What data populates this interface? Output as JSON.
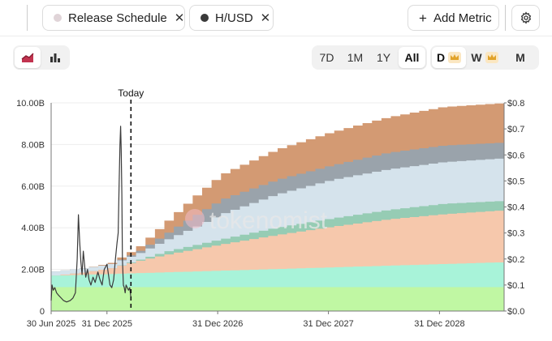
{
  "metrics": {
    "pills": [
      {
        "label": "Release Schedule",
        "dot_color": "#e0d4d8"
      },
      {
        "label": "H/USD",
        "dot_color": "#3a3a3a"
      }
    ],
    "close_glyph": "✕",
    "add_label": "Add Metric",
    "add_icon": "plus-icon",
    "settings_icon": "gear-icon"
  },
  "controls": {
    "chart_types": [
      {
        "icon": "area-chart-icon",
        "active": true
      },
      {
        "icon": "bar-chart-icon",
        "active": false
      }
    ],
    "ranges": [
      {
        "label": "7D",
        "active": false
      },
      {
        "label": "1M",
        "active": false
      },
      {
        "label": "1Y",
        "active": false
      },
      {
        "label": "All",
        "active": true
      }
    ],
    "granularity": [
      {
        "label": "D",
        "premium": true,
        "active": true
      },
      {
        "label": "W",
        "premium": true,
        "active": false
      },
      {
        "label": "M",
        "premium": false,
        "active": false
      }
    ]
  },
  "watermark": "tokenomist",
  "chart_data": {
    "type": "area",
    "title": "",
    "xlabel": "",
    "ylabel": "",
    "today_label": "Today",
    "today_date": "2026-03-20",
    "x_range": [
      "2025-06-30",
      "2029-08-01"
    ],
    "x_ticks": [
      {
        "date": "2025-06-30",
        "label": "30 Jun 2025"
      },
      {
        "date": "2025-12-31",
        "label": "31 Dec 2025"
      },
      {
        "date": "2026-12-31",
        "label": "31 Dec 2026"
      },
      {
        "date": "2027-12-31",
        "label": "31 Dec 2027"
      },
      {
        "date": "2028-12-31",
        "label": "31 Dec 2028"
      }
    ],
    "y_left": {
      "range": [
        0,
        10000000000
      ],
      "ticks": [
        {
          "value": 0,
          "label": "0"
        },
        {
          "value": 2000000000,
          "label": "2.00B"
        },
        {
          "value": 4000000000,
          "label": "4.00B"
        },
        {
          "value": 6000000000,
          "label": "6.00B"
        },
        {
          "value": 8000000000,
          "label": "8.00B"
        },
        {
          "value": 10000000000,
          "label": "10.00B"
        }
      ]
    },
    "y_right": {
      "range": [
        0,
        0.8
      ],
      "ticks": [
        {
          "value": 0,
          "label": "$0.0"
        },
        {
          "value": 0.1,
          "label": "$0.1"
        },
        {
          "value": 0.2,
          "label": "$0.2"
        },
        {
          "value": 0.3,
          "label": "$0.3"
        },
        {
          "value": 0.4,
          "label": "$0.4"
        },
        {
          "value": 0.5,
          "label": "$0.5"
        },
        {
          "value": 0.6,
          "label": "$0.6"
        },
        {
          "value": 0.7,
          "label": "$0.7"
        },
        {
          "value": 0.8,
          "label": "$0.8"
        }
      ]
    },
    "grid": "horizontal",
    "stack_series": [
      {
        "color": "#c0f7a3",
        "points": [
          [
            "2025-06-30",
            1150000000
          ],
          [
            "2029-08-01",
            1150000000
          ]
        ]
      },
      {
        "color": "#a8f3d9",
        "points": [
          [
            "2025-06-30",
            1700000000
          ],
          [
            "2029-08-01",
            2350000000
          ]
        ]
      },
      {
        "color": "#f6c8ac",
        "points": [
          [
            "2025-06-30",
            1700000000
          ],
          [
            "2025-10-01",
            1850000000
          ],
          [
            "2026-01-01",
            2050000000
          ],
          [
            "2026-04-01",
            2400000000
          ],
          [
            "2026-07-01",
            2700000000
          ],
          [
            "2026-10-01",
            2950000000
          ],
          [
            "2027-01-01",
            3200000000
          ],
          [
            "2027-07-01",
            3650000000
          ],
          [
            "2028-01-01",
            4050000000
          ],
          [
            "2028-07-01",
            4400000000
          ],
          [
            "2029-01-01",
            4650000000
          ],
          [
            "2029-08-01",
            4850000000
          ]
        ]
      },
      {
        "color": "#96ccb4",
        "points": [
          [
            "2025-06-30",
            1700000000
          ],
          [
            "2025-10-01",
            1850000000
          ],
          [
            "2026-01-01",
            2050000000
          ],
          [
            "2026-04-01",
            2450000000
          ],
          [
            "2026-07-01",
            2850000000
          ],
          [
            "2026-10-01",
            3150000000
          ],
          [
            "2027-01-01",
            3450000000
          ],
          [
            "2027-07-01",
            4000000000
          ],
          [
            "2028-01-01",
            4450000000
          ],
          [
            "2028-07-01",
            4850000000
          ],
          [
            "2029-01-01",
            5150000000
          ],
          [
            "2029-08-01",
            5300000000
          ]
        ]
      },
      {
        "color": "#d5e3ec",
        "points": [
          [
            "2025-06-30",
            1900000000
          ],
          [
            "2025-10-01",
            2050000000
          ],
          [
            "2026-01-01",
            2250000000
          ],
          [
            "2026-04-01",
            2750000000
          ],
          [
            "2026-07-01",
            3400000000
          ],
          [
            "2026-10-01",
            4000000000
          ],
          [
            "2027-01-01",
            4650000000
          ],
          [
            "2027-07-01",
            5600000000
          ],
          [
            "2028-01-01",
            6300000000
          ],
          [
            "2028-07-01",
            6800000000
          ],
          [
            "2029-01-01",
            7150000000
          ],
          [
            "2029-08-01",
            7350000000
          ]
        ]
      },
      {
        "color": "#9aa3ab",
        "points": [
          [
            "2025-06-30",
            1900000000
          ],
          [
            "2025-10-01",
            2050000000
          ],
          [
            "2026-01-01",
            2250000000
          ],
          [
            "2026-04-01",
            2850000000
          ],
          [
            "2026-07-01",
            3700000000
          ],
          [
            "2026-10-01",
            4550000000
          ],
          [
            "2027-01-01",
            5350000000
          ],
          [
            "2027-07-01",
            6300000000
          ],
          [
            "2028-01-01",
            7000000000
          ],
          [
            "2028-07-01",
            7600000000
          ],
          [
            "2029-01-01",
            7950000000
          ],
          [
            "2029-08-01",
            8100000000
          ]
        ]
      },
      {
        "color": "#d39a73",
        "points": [
          [
            "2025-06-30",
            1900000000
          ],
          [
            "2025-10-01",
            2050000000
          ],
          [
            "2026-01-01",
            2300000000
          ],
          [
            "2026-04-01",
            3050000000
          ],
          [
            "2026-07-01",
            4250000000
          ],
          [
            "2026-10-01",
            5450000000
          ],
          [
            "2027-01-01",
            6550000000
          ],
          [
            "2027-07-01",
            7750000000
          ],
          [
            "2028-01-01",
            8600000000
          ],
          [
            "2028-07-01",
            9300000000
          ],
          [
            "2029-01-01",
            9800000000
          ],
          [
            "2029-08-01",
            10000000000
          ]
        ]
      }
    ],
    "price_series": {
      "color": "#3a3a3a",
      "axis": "right",
      "points": [
        [
          "2025-06-30",
          0.04
        ],
        [
          "2025-07-03",
          0.1
        ],
        [
          "2025-07-07",
          0.08
        ],
        [
          "2025-07-12",
          0.09
        ],
        [
          "2025-07-18",
          0.07
        ],
        [
          "2025-07-25",
          0.06
        ],
        [
          "2025-08-02",
          0.05
        ],
        [
          "2025-08-10",
          0.04
        ],
        [
          "2025-08-20",
          0.035
        ],
        [
          "2025-09-01",
          0.04
        ],
        [
          "2025-09-10",
          0.05
        ],
        [
          "2025-09-18",
          0.07
        ],
        [
          "2025-09-24",
          0.2
        ],
        [
          "2025-09-28",
          0.37
        ],
        [
          "2025-10-02",
          0.27
        ],
        [
          "2025-10-06",
          0.19
        ],
        [
          "2025-10-10",
          0.14
        ],
        [
          "2025-10-14",
          0.23
        ],
        [
          "2025-10-18",
          0.18
        ],
        [
          "2025-10-22",
          0.13
        ],
        [
          "2025-10-28",
          0.16
        ],
        [
          "2025-11-02",
          0.12
        ],
        [
          "2025-11-08",
          0.1
        ],
        [
          "2025-11-15",
          0.13
        ],
        [
          "2025-11-22",
          0.11
        ],
        [
          "2025-12-01",
          0.15
        ],
        [
          "2025-12-08",
          0.12
        ],
        [
          "2025-12-15",
          0.1
        ],
        [
          "2025-12-22",
          0.16
        ],
        [
          "2025-12-31",
          0.18
        ],
        [
          "2026-01-05",
          0.14
        ],
        [
          "2026-01-10",
          0.1
        ],
        [
          "2026-01-16",
          0.09
        ],
        [
          "2026-01-22",
          0.12
        ],
        [
          "2026-01-28",
          0.2
        ],
        [
          "2026-02-02",
          0.26
        ],
        [
          "2026-02-06",
          0.3
        ],
        [
          "2026-02-09",
          0.48
        ],
        [
          "2026-02-12",
          0.64
        ],
        [
          "2026-02-14",
          0.71
        ],
        [
          "2026-02-16",
          0.62
        ],
        [
          "2026-02-18",
          0.45
        ],
        [
          "2026-02-20",
          0.2
        ],
        [
          "2026-02-23",
          0.1
        ],
        [
          "2026-02-26",
          0.09
        ],
        [
          "2026-03-01",
          0.07
        ],
        [
          "2026-03-04",
          0.1
        ],
        [
          "2026-03-08",
          0.09
        ],
        [
          "2026-03-12",
          0.08
        ],
        [
          "2026-03-16",
          0.09
        ],
        [
          "2026-03-20",
          0.05
        ]
      ]
    }
  }
}
